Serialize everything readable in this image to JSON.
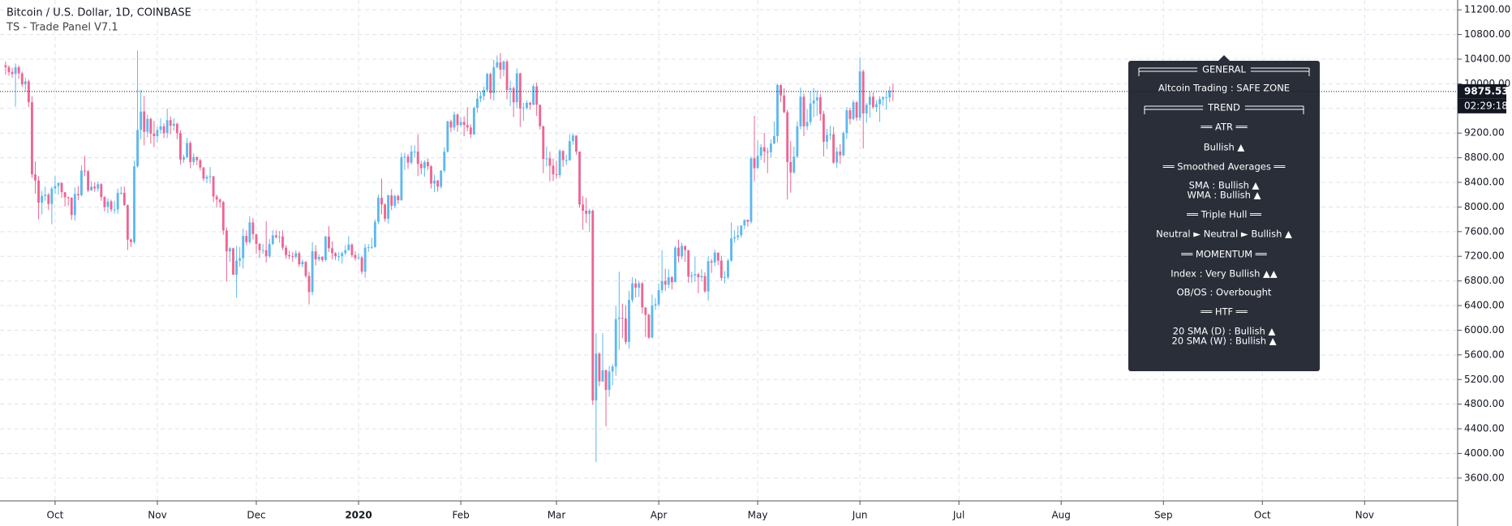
{
  "chart_data": {
    "type": "candlestick",
    "title": "Bitcoin / U.S. Dollar, 1D, COINBASE",
    "subtitle": "TS - Trade Panel V7.1",
    "up_color": "#5cb8ee",
    "down_color": "#ee6592",
    "grid": true,
    "open": [
      10300,
      10270,
      10190,
      10160,
      10270,
      10170,
      9990,
      10040,
      9700,
      8530,
      8430,
      8070,
      8180,
      8200,
      8050,
      8300,
      8340,
      8390,
      8240,
      8160,
      8150,
      7870,
      8210,
      8190,
      8590,
      8580,
      8270,
      8330,
      8300,
      8370,
      8160,
      8000,
      8090,
      7960,
      7960,
      8230,
      8230,
      8030,
      7470,
      7430,
      8660,
      9250,
      9550,
      9220,
      9430,
      9190,
      9150,
      9250,
      9310,
      9200,
      9410,
      9320,
      9350,
      9200,
      8770,
      8810,
      9040,
      8730,
      8810,
      8760,
      8640,
      8460,
      8490,
      8500,
      8170,
      8120,
      8080,
      7620,
      7280,
      7330,
      6900,
      7130,
      7170,
      7530,
      7430,
      7750,
      7560,
      7400,
      7300,
      7300,
      7200,
      7400,
      7540,
      7510,
      7520,
      7340,
      7220,
      7200,
      7190,
      7250,
      7070,
      7110,
      6880,
      6620,
      7280,
      7150,
      7190,
      7140,
      7520,
      7330,
      7250,
      7200,
      7200,
      7250,
      7300,
      7390,
      7220,
      7170,
      7180,
      6950,
      7340,
      7350,
      7350,
      7760,
      8150,
      8040,
      7810,
      8190,
      8020,
      8180,
      8110,
      8810,
      8820,
      8720,
      8900,
      8900,
      8700,
      8630,
      8730,
      8660,
      8380,
      8430,
      8330,
      8590,
      8900,
      9390,
      9290,
      9500,
      9330,
      9380,
      9330,
      9290,
      9180,
      9610,
      9760,
      9800,
      9900,
      10160,
      9850,
      10270,
      10350,
      10230,
      10360,
      9900,
      9930,
      9700,
      10170,
      9600,
      9610,
      9690,
      9660,
      9960,
      9660,
      9310,
      8780,
      8790,
      8670,
      8530,
      8520,
      8910,
      8760,
      8760,
      9070,
      9160,
      8900,
      8040,
      7940,
      7890,
      7940,
      4860,
      5620,
      5170,
      5350,
      5030,
      5330,
      5410,
      6180,
      6200,
      6190,
      5810,
      6490,
      6760,
      6690,
      6760,
      6370,
      6250,
      5880,
      6400,
      6420,
      6650,
      6800,
      6740,
      6860,
      6780,
      7340,
      7200,
      7370,
      7300,
      6870,
      6890,
      6910,
      6860,
      6880,
      6630,
      7120,
      7100,
      7260,
      7130,
      6850,
      6860,
      7130,
      7490,
      7510,
      7540,
      7700,
      7790,
      7760,
      8790,
      8630,
      8830,
      8970,
      8900,
      8890,
      9030,
      9150,
      9980,
      9810,
      9540,
      8730,
      8560,
      8820,
      9310,
      9790,
      9310,
      9380,
      9680,
      9730,
      9780,
      9510,
      9060,
      9170,
      9180,
      8720,
      8900,
      8840,
      9200,
      9570,
      9430,
      9700,
      9450,
      10200,
      9520,
      9660,
      9790,
      9620,
      9670,
      9750,
      9780,
      9780,
      9890
    ],
    "high": [
      10360,
      10300,
      10260,
      10330,
      10300,
      10200,
      10100,
      10070,
      9800,
      8740,
      8500,
      8260,
      8330,
      8230,
      8330,
      8500,
      8400,
      8400,
      8240,
      8170,
      8160,
      8320,
      8340,
      8680,
      8830,
      8600,
      8420,
      8400,
      8410,
      8390,
      8180,
      8140,
      8120,
      8100,
      8300,
      8330,
      8330,
      8040,
      7490,
      8750,
      10540,
      9900,
      9800,
      9500,
      9450,
      9400,
      9300,
      9440,
      9360,
      9600,
      9470,
      9440,
      9370,
      9250,
      8850,
      9120,
      9070,
      8870,
      8820,
      8780,
      8650,
      8520,
      8650,
      8500,
      8200,
      8140,
      8100,
      7670,
      7350,
      7340,
      7370,
      7350,
      7650,
      7620,
      7850,
      7820,
      7560,
      7420,
      7400,
      7770,
      7480,
      7620,
      7620,
      7610,
      7620,
      7380,
      7290,
      7270,
      7300,
      7280,
      7150,
      7120,
      6950,
      7430,
      7380,
      7230,
      7200,
      7530,
      7690,
      7440,
      7270,
      7270,
      7280,
      7380,
      7530,
      7410,
      7280,
      7250,
      7210,
      7400,
      7400,
      7500,
      7800,
      8200,
      8460,
      8060,
      8200,
      8290,
      8200,
      8200,
      8880,
      8880,
      8860,
      9000,
      9000,
      9180,
      8750,
      8760,
      8790,
      8680,
      8520,
      8440,
      8600,
      8970,
      9400,
      9420,
      9550,
      9520,
      9460,
      9470,
      9620,
      9340,
      9630,
      9860,
      9870,
      9960,
      10180,
      10180,
      10390,
      10460,
      10500,
      10380,
      10390,
      10050,
      9960,
      10250,
      10180,
      9690,
      9730,
      9710,
      9990,
      10020,
      9660,
      9320,
      8980,
      8900,
      8790,
      8750,
      8940,
      8920,
      8850,
      9180,
      9190,
      9160,
      8900,
      8180,
      8150,
      7970,
      7960,
      5950,
      5640,
      5950,
      5360,
      5420,
      5450,
      6390,
      6950,
      6430,
      6410,
      6640,
      6860,
      6840,
      6800,
      6780,
      6370,
      6270,
      6580,
      6520,
      6760,
      7300,
      7000,
      6990,
      6880,
      7370,
      7470,
      7420,
      7370,
      7300,
      6950,
      7190,
      6930,
      6990,
      6940,
      7200,
      7160,
      7310,
      7260,
      7210,
      6960,
      7160,
      7750,
      7620,
      7700,
      7700,
      7800,
      7800,
      8820,
      9480,
      9080,
      9020,
      9200,
      8960,
      9100,
      9390,
      10000,
      9990,
      9930,
      9580,
      9070,
      8980,
      9390,
      9940,
      9840,
      9590,
      9880,
      9930,
      9890,
      9840,
      9560,
      9270,
      9320,
      9300,
      8970,
      9020,
      9230,
      9620,
      9610,
      9740,
      9720,
      10430,
      10230,
      9690,
      9880,
      9860,
      9730,
      9800,
      9800,
      9880,
      9960,
      10000
    ],
    "low": [
      10150,
      10130,
      10100,
      9630,
      10080,
      9950,
      9870,
      9620,
      8470,
      8220,
      7800,
      7880,
      8100,
      7950,
      7720,
      8210,
      8200,
      8150,
      8010,
      8020,
      7790,
      7780,
      8110,
      8170,
      8500,
      8240,
      8260,
      8250,
      8250,
      8100,
      7930,
      7900,
      7920,
      7890,
      7890,
      8200,
      8020,
      7300,
      7350,
      7400,
      8640,
      9100,
      9000,
      9130,
      9030,
      8970,
      9050,
      9190,
      9120,
      9120,
      9180,
      9240,
      9100,
      8690,
      8720,
      8790,
      8630,
      8680,
      8680,
      8590,
      8420,
      8390,
      8380,
      8080,
      7990,
      7990,
      7550,
      6790,
      7110,
      6900,
      6530,
      7030,
      7000,
      7380,
      7400,
      7470,
      7240,
      7170,
      7240,
      7100,
      7170,
      7380,
      7490,
      7420,
      7300,
      7160,
      7150,
      7110,
      7160,
      7030,
      7020,
      6850,
      6420,
      6570,
      7050,
      7120,
      7110,
      7120,
      7270,
      7150,
      7140,
      7120,
      7080,
      7220,
      7290,
      7180,
      7130,
      7140,
      6910,
      6850,
      7270,
      7320,
      7340,
      7720,
      7880,
      7760,
      7730,
      7950,
      7980,
      8050,
      8100,
      8600,
      8620,
      8690,
      8800,
      8500,
      8530,
      8490,
      8600,
      8300,
      8240,
      8250,
      8300,
      8560,
      8880,
      9210,
      9240,
      9220,
      9300,
      9150,
      9230,
      9120,
      9170,
      9530,
      9700,
      9730,
      9880,
      9750,
      9730,
      10250,
      10080,
      10120,
      9750,
      9640,
      9460,
      9600,
      9300,
      9400,
      9580,
      9580,
      9650,
      9480,
      9260,
      8550,
      8660,
      8420,
      8420,
      8460,
      8470,
      8650,
      8680,
      8750,
      9010,
      8850,
      7990,
      7630,
      7740,
      7590,
      4790,
      3860,
      5090,
      5160,
      4440,
      4920,
      5110,
      5260,
      5680,
      5870,
      5770,
      5700,
      6450,
      6530,
      6540,
      6270,
      5890,
      5860,
      5870,
      6330,
      6390,
      6600,
      6640,
      6680,
      6660,
      6780,
      7100,
      7150,
      7110,
      6770,
      6770,
      6790,
      6600,
      6790,
      6610,
      6480,
      6930,
      7040,
      7060,
      6800,
      6760,
      6830,
      7110,
      7420,
      7460,
      7500,
      7640,
      7680,
      7730,
      8420,
      8630,
      8760,
      8720,
      8550,
      8800,
      9020,
      9040,
      9700,
      9520,
      8120,
      8230,
      8540,
      8800,
      9260,
      9150,
      9250,
      9330,
      9460,
      9480,
      9400,
      8820,
      8940,
      9090,
      8700,
      8640,
      8700,
      8820,
      9110,
      9340,
      9410,
      9400,
      9400,
      8950,
      9370,
      9450,
      9590,
      9540,
      9380,
      9640,
      9580,
      9700,
      9720
    ],
    "close": [
      10270,
      10190,
      10160,
      10270,
      10170,
      9990,
      10040,
      9700,
      8530,
      8430,
      8070,
      8180,
      8200,
      8050,
      8300,
      8340,
      8390,
      8240,
      8160,
      8150,
      7870,
      8210,
      8190,
      8590,
      8580,
      8270,
      8330,
      8300,
      8370,
      8160,
      8000,
      8090,
      7960,
      7960,
      8230,
      8230,
      8030,
      7470,
      7430,
      8660,
      9250,
      9550,
      9220,
      9430,
      9190,
      9150,
      9250,
      9310,
      9200,
      9410,
      9320,
      9350,
      9200,
      8770,
      8810,
      9040,
      8730,
      8810,
      8760,
      8640,
      8460,
      8490,
      8500,
      8170,
      8120,
      8080,
      7620,
      7280,
      7330,
      6900,
      7130,
      7170,
      7530,
      7430,
      7750,
      7560,
      7400,
      7300,
      7300,
      7200,
      7400,
      7540,
      7510,
      7520,
      7340,
      7220,
      7200,
      7190,
      7250,
      7070,
      7110,
      6880,
      6620,
      7280,
      7150,
      7190,
      7140,
      7520,
      7330,
      7250,
      7200,
      7200,
      7250,
      7300,
      7390,
      7220,
      7170,
      7180,
      6950,
      7340,
      7350,
      7350,
      7760,
      8150,
      8040,
      7810,
      8190,
      8020,
      8180,
      8110,
      8810,
      8820,
      8720,
      8900,
      8900,
      8700,
      8630,
      8730,
      8660,
      8380,
      8430,
      8330,
      8590,
      8900,
      9390,
      9290,
      9500,
      9330,
      9380,
      9330,
      9290,
      9180,
      9610,
      9760,
      9800,
      9900,
      10160,
      9850,
      10270,
      10350,
      10230,
      10360,
      9900,
      9930,
      9700,
      10170,
      9600,
      9610,
      9690,
      9660,
      9960,
      9660,
      9310,
      8780,
      8790,
      8670,
      8530,
      8520,
      8910,
      8760,
      8760,
      9070,
      9160,
      8900,
      8040,
      7940,
      7890,
      7940,
      4860,
      5620,
      5170,
      5350,
      5030,
      5330,
      5410,
      6180,
      6200,
      6190,
      5810,
      6490,
      6760,
      6690,
      6760,
      6370,
      6250,
      5880,
      6400,
      6420,
      6650,
      6800,
      6740,
      6860,
      6780,
      7340,
      7200,
      7370,
      7300,
      6870,
      6890,
      6910,
      6860,
      6880,
      6630,
      7120,
      7100,
      7260,
      7130,
      6850,
      6860,
      7130,
      7490,
      7510,
      7540,
      7700,
      7790,
      7760,
      8790,
      8630,
      8830,
      8970,
      8900,
      8890,
      9030,
      9150,
      9980,
      9810,
      9540,
      8730,
      8560,
      8820,
      9310,
      9790,
      9310,
      9380,
      9680,
      9730,
      9780,
      9510,
      9060,
      9170,
      9180,
      8720,
      8900,
      8840,
      9200,
      9570,
      9430,
      9700,
      9450,
      10200,
      9520,
      9660,
      9790,
      9620,
      9670,
      9750,
      9780,
      9780,
      9890,
      9875.53
    ],
    "last_price": 9875.53,
    "countdown": "02:29:18",
    "ylim": [
      3230,
      11360
    ],
    "yticks": [
      {
        "value": 3600,
        "label": "3600.00"
      },
      {
        "value": 4000,
        "label": "4000.00"
      },
      {
        "value": 4400,
        "label": "4400.00"
      },
      {
        "value": 4800,
        "label": "4800.00"
      },
      {
        "value": 5200,
        "label": "5200.00"
      },
      {
        "value": 5600,
        "label": "5600.00"
      },
      {
        "value": 6000,
        "label": "6000.00"
      },
      {
        "value": 6400,
        "label": "6400.00"
      },
      {
        "value": 6800,
        "label": "6800.00"
      },
      {
        "value": 7200,
        "label": "7200.00"
      },
      {
        "value": 7600,
        "label": "7600.00"
      },
      {
        "value": 8000,
        "label": "8000.00"
      },
      {
        "value": 8400,
        "label": "8400.00"
      },
      {
        "value": 8800,
        "label": "8800.00"
      },
      {
        "value": 9200,
        "label": "9200.00"
      },
      {
        "value": 9600,
        "label": "9600.00"
      },
      {
        "value": 10000,
        "label": "10000.00"
      },
      {
        "value": 10400,
        "label": "10400.00"
      },
      {
        "value": 10800,
        "label": "10800.00"
      },
      {
        "value": 11200,
        "label": "11200.00"
      }
    ],
    "xlim": [
      -1.7,
      440.2
    ],
    "xticks": [
      {
        "value": 15,
        "label": "Oct"
      },
      {
        "value": 46,
        "label": "Nov"
      },
      {
        "value": 76,
        "label": "Dec"
      },
      {
        "value": 107,
        "label": "2020"
      },
      {
        "value": 138,
        "label": "Feb"
      },
      {
        "value": 167,
        "label": "Mar"
      },
      {
        "value": 198,
        "label": "Apr"
      },
      {
        "value": 228,
        "label": "May"
      },
      {
        "value": 259,
        "label": "Jun"
      },
      {
        "value": 289,
        "label": "Jul"
      },
      {
        "value": 320,
        "label": "Aug"
      },
      {
        "value": 351,
        "label": "Sep"
      },
      {
        "value": 381,
        "label": "Oct"
      },
      {
        "value": 412,
        "label": "Nov"
      }
    ]
  },
  "panel": {
    "rows": [
      "GENERAL",
      "Altcoin Trading : SAFE ZONE",
      "TREND",
      "══ ATR ══",
      "Bullish ▲",
      "══ Smoothed Averages ══",
      "SMA : Bullish ▲",
      "WMA : Bullish ▲",
      "══ Triple Hull ══",
      "Neutral ► Neutral ► Bullish ▲",
      "══ MOMENTUM ══",
      "Index : Very Bullish ▲▲",
      "OB/OS : Overbought",
      "══ HTF ══",
      "20 SMA (D) : Bullish ▲",
      "20 SMA (W) : Bullish ▲"
    ]
  }
}
